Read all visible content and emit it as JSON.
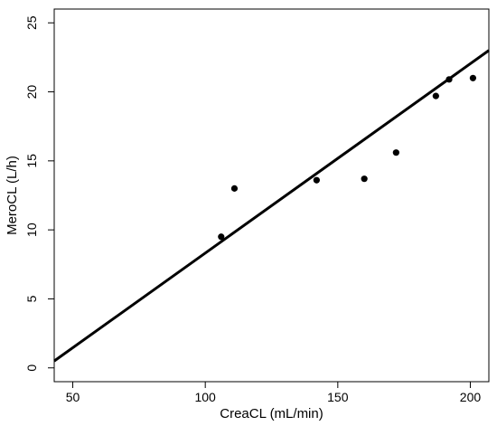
{
  "chart_data": {
    "type": "scatter",
    "xlabel": "CreaCL (mL/min)",
    "ylabel": "MeroCL (L/h)",
    "xlim": [
      43,
      207
    ],
    "ylim": [
      -1,
      26
    ],
    "x_ticks": [
      50,
      100,
      150,
      200
    ],
    "y_ticks": [
      0,
      5,
      10,
      15,
      20,
      25
    ],
    "grid": false,
    "points": [
      {
        "x": 106,
        "y": 9.5
      },
      {
        "x": 111,
        "y": 13.0
      },
      {
        "x": 142,
        "y": 13.6
      },
      {
        "x": 160,
        "y": 13.7
      },
      {
        "x": 172,
        "y": 15.6
      },
      {
        "x": 187,
        "y": 19.7
      },
      {
        "x": 192,
        "y": 20.9
      },
      {
        "x": 201,
        "y": 21.0
      }
    ],
    "fit_line": {
      "x": [
        43,
        207
      ],
      "y": [
        0.5,
        23.0
      ]
    },
    "colors": {
      "points": "#000000",
      "line": "#000000",
      "axes": "#000000"
    }
  }
}
